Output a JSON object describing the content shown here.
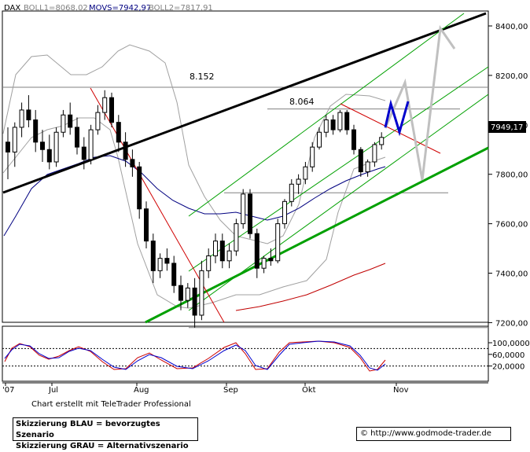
{
  "chart_data": {
    "type": "candlestick",
    "header": {
      "symbol": "DAX",
      "indicators": [
        {
          "text": "BOLL1=8068,02",
          "value": 8068.02
        },
        {
          "text": "MOVS=7942,97",
          "value": 7942.97
        },
        {
          "text": "BOLL2=7817,91",
          "value": 7817.91
        }
      ]
    },
    "y_axis": {
      "range": [
        7150,
        8450
      ],
      "ticks": [
        "8400,00",
        "8200,00",
        "8000,00",
        "7800,00",
        "7600,00",
        "7400,00",
        "7200,00"
      ],
      "tick_values": [
        8400,
        8200,
        8000,
        7800,
        7600,
        7400,
        7200
      ]
    },
    "x_axis": {
      "ticks": [
        "'07",
        "Jul",
        "Aug",
        "Sep",
        "Okt",
        "Nov"
      ]
    },
    "last_price": {
      "label": "7949,17",
      "value": 7949.17
    },
    "levels": [
      {
        "label": "8.152",
        "value": 8152
      },
      {
        "label": "8.064",
        "value": 8064
      },
      {
        "label": "",
        "value": 7725
      },
      {
        "label": "",
        "value": 7180
      }
    ],
    "candles": [
      [
        7930,
        7990,
        7780,
        7890
      ],
      [
        7890,
        8010,
        7830,
        7990
      ],
      [
        7990,
        8090,
        7950,
        8060
      ],
      [
        8060,
        8120,
        7990,
        8020
      ],
      [
        8020,
        8060,
        7890,
        7930
      ],
      [
        7930,
        7980,
        7850,
        7900
      ],
      [
        7900,
        7960,
        7820,
        7850
      ],
      [
        7850,
        7990,
        7830,
        7970
      ],
      [
        7970,
        8060,
        7950,
        8040
      ],
      [
        8040,
        8090,
        7960,
        7990
      ],
      [
        7990,
        8030,
        7880,
        7910
      ],
      [
        7910,
        7950,
        7820,
        7860
      ],
      [
        7860,
        8000,
        7840,
        7980
      ],
      [
        7980,
        8080,
        7960,
        8050
      ],
      [
        8050,
        8140,
        8020,
        8110
      ],
      [
        8110,
        8130,
        7990,
        8010
      ],
      [
        8010,
        8040,
        7890,
        7930
      ],
      [
        7930,
        7970,
        7830,
        7860
      ],
      [
        7860,
        7900,
        7790,
        7830
      ],
      [
        7830,
        7850,
        7620,
        7660
      ],
      [
        7660,
        7690,
        7500,
        7530
      ],
      [
        7530,
        7560,
        7360,
        7410
      ],
      [
        7410,
        7480,
        7380,
        7460
      ],
      [
        7460,
        7500,
        7410,
        7440
      ],
      [
        7440,
        7470,
        7320,
        7350
      ],
      [
        7350,
        7390,
        7250,
        7290
      ],
      [
        7290,
        7360,
        7260,
        7340
      ],
      [
        7340,
        7380,
        7180,
        7230
      ],
      [
        7230,
        7450,
        7210,
        7410
      ],
      [
        7410,
        7500,
        7380,
        7470
      ],
      [
        7470,
        7560,
        7440,
        7530
      ],
      [
        7530,
        7560,
        7420,
        7450
      ],
      [
        7450,
        7520,
        7420,
        7490
      ],
      [
        7490,
        7620,
        7470,
        7600
      ],
      [
        7600,
        7740,
        7580,
        7720
      ],
      [
        7720,
        7740,
        7540,
        7560
      ],
      [
        7560,
        7580,
        7380,
        7420
      ],
      [
        7420,
        7470,
        7400,
        7460
      ],
      [
        7460,
        7500,
        7430,
        7450
      ],
      [
        7450,
        7620,
        7440,
        7600
      ],
      [
        7600,
        7700,
        7580,
        7690
      ],
      [
        7690,
        7780,
        7670,
        7760
      ],
      [
        7760,
        7800,
        7720,
        7780
      ],
      [
        7780,
        7850,
        7760,
        7830
      ],
      [
        7830,
        7930,
        7810,
        7910
      ],
      [
        7910,
        7990,
        7900,
        7970
      ],
      [
        7970,
        8040,
        7950,
        8020
      ],
      [
        8020,
        8040,
        7960,
        7980
      ],
      [
        7980,
        8060,
        7970,
        8050
      ],
      [
        8050,
        8060,
        7960,
        7980
      ],
      [
        7980,
        8000,
        7880,
        7900
      ],
      [
        7900,
        7910,
        7790,
        7810
      ],
      [
        7810,
        7860,
        7790,
        7850
      ],
      [
        7850,
        7930,
        7830,
        7920
      ],
      [
        7920,
        7970,
        7900,
        7949.17
      ]
    ],
    "overlays": [
      {
        "name": "Bollinger band",
        "color": "#a0a0a0",
        "style": "thin"
      },
      {
        "name": "moving average",
        "color": "#000080",
        "style": "thin"
      },
      {
        "name": "long moving average",
        "color": "#c00000",
        "style": "thin"
      },
      {
        "name": "Trend channel",
        "color": "#00a000",
        "style": "thin"
      },
      {
        "name": "Long-term trendline",
        "color": "#000000",
        "style": "thick"
      },
      {
        "name": "Downtrend line",
        "color": "#d00000",
        "style": "thin"
      }
    ],
    "scenarios": {
      "blue": {
        "color": "#0000cc",
        "path": [
          [
            7949,
            "now"
          ],
          [
            8064,
            "+1"
          ],
          [
            7950,
            "+2"
          ],
          [
            8064,
            "+3"
          ]
        ]
      },
      "gray": {
        "color": "#c0c0c0",
        "path": [
          [
            7949,
            "now"
          ],
          [
            7725,
            "+1"
          ],
          [
            8064,
            "+2"
          ],
          [
            8152,
            "+3"
          ],
          [
            8400,
            "+4"
          ]
        ]
      }
    },
    "oscillator": {
      "ticks": [
        "100,0000",
        "60,0000",
        "20,0000"
      ],
      "tick_values": [
        100,
        60,
        20
      ],
      "guide_levels": [
        80,
        20
      ],
      "series": [
        {
          "name": "",
          "color": "#cc0000"
        },
        {
          "name": "",
          "color": "#0000cc"
        }
      ]
    }
  },
  "footer": {
    "credit": "Chart erstellt mit TeleTrader Professional",
    "legend_line1": "Skizzierung BLAU = bevorzugtes Szenario",
    "legend_line2": "Skizzierung GRAU = Alternativszenario",
    "url": "© http://www.godmode-trader.de"
  }
}
